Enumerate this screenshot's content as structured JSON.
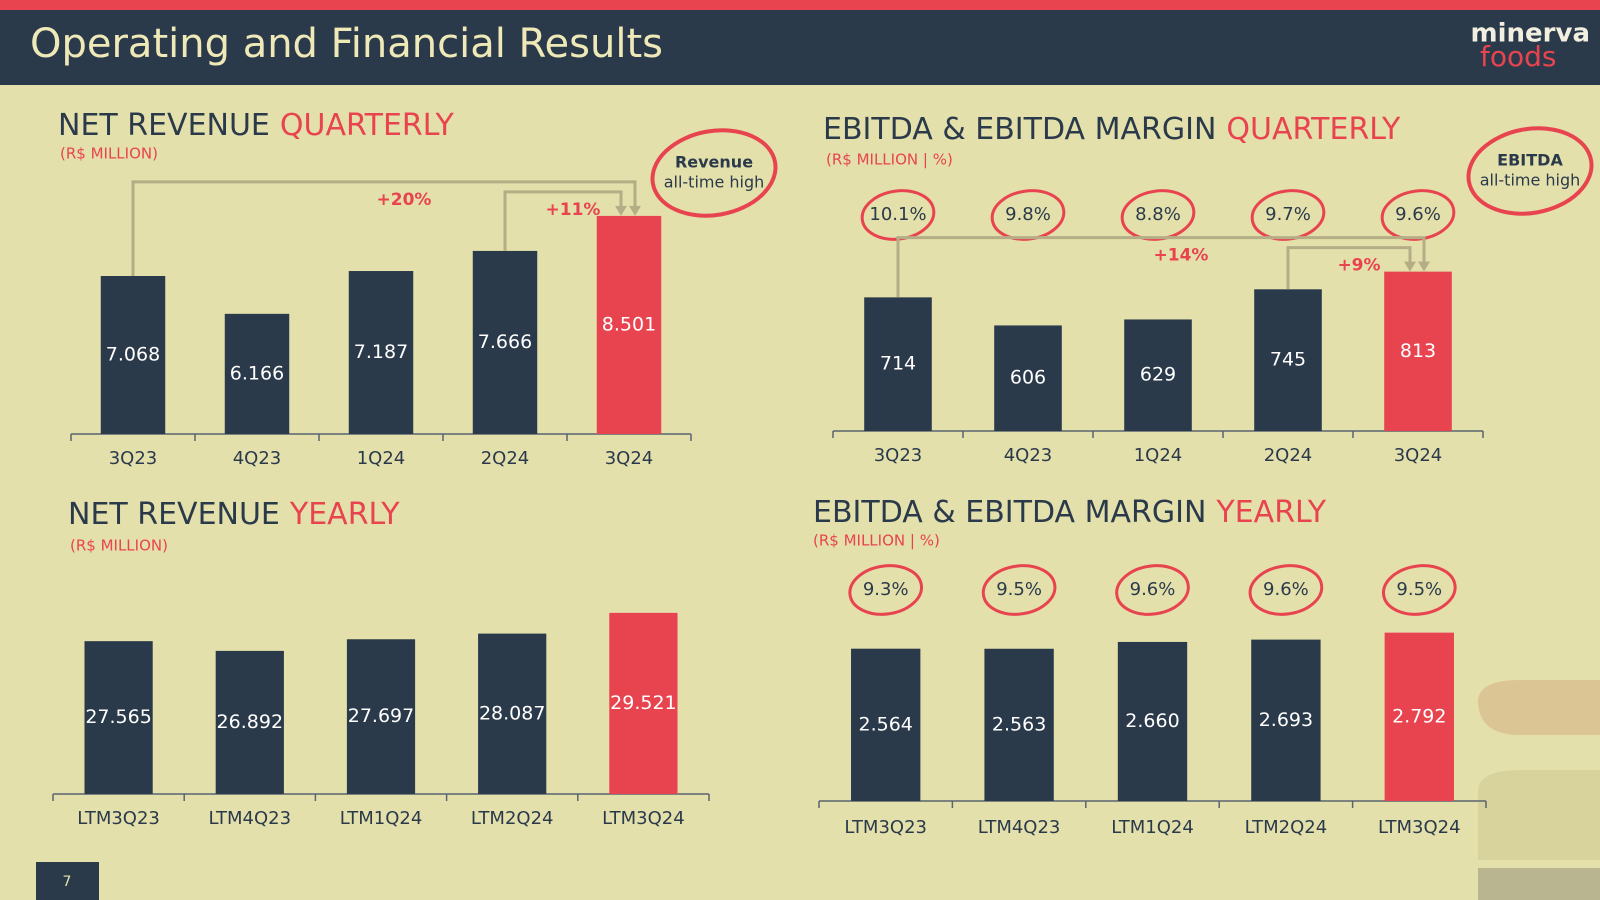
{
  "header": {
    "title": "Operating and Financial Results",
    "logo_top": "minerva",
    "logo_bottom": "foods"
  },
  "page_number": "7",
  "chart_data": [
    {
      "type": "bar",
      "title": "NET REVENUE",
      "title_highlight": "QUARTERLY",
      "subtitle": "(R$ MILLION)",
      "categories": [
        "3Q23",
        "4Q23",
        "1Q24",
        "2Q24",
        "3Q24"
      ],
      "values": [
        7068,
        6166,
        7187,
        7666,
        8501
      ],
      "value_labels": [
        "7.068",
        "6.166",
        "7.187",
        "7.666",
        "8.501"
      ],
      "colors": [
        "#2b3a4b",
        "#2b3a4b",
        "#2b3a4b",
        "#2b3a4b",
        "#e8444f"
      ],
      "ylim": [
        3300,
        9000
      ],
      "growth": [
        {
          "label": "+20%",
          "from": 0,
          "to": 4
        },
        {
          "label": "+11%",
          "from": 3,
          "to": 4
        }
      ],
      "callout": {
        "title": "Revenue",
        "text": "all-time high"
      }
    },
    {
      "type": "bar",
      "title": "EBITDA & EBITDA MARGIN",
      "title_highlight": "QUARTERLY",
      "subtitle": "(R$ MILLION | %)",
      "categories": [
        "3Q23",
        "4Q23",
        "1Q24",
        "2Q24",
        "3Q24"
      ],
      "values": [
        714,
        606,
        629,
        745,
        813
      ],
      "value_labels": [
        "714",
        "606",
        "629",
        "745",
        "813"
      ],
      "margins": [
        10.1,
        9.8,
        8.8,
        9.7,
        9.6
      ],
      "margin_labels": [
        "10.1%",
        "9.8%",
        "8.8%",
        "9.7%",
        "9.6%"
      ],
      "colors": [
        "#2b3a4b",
        "#2b3a4b",
        "#2b3a4b",
        "#2b3a4b",
        "#e8444f"
      ],
      "ylim": [
        200,
        1000
      ],
      "growth": [
        {
          "label": "+14%",
          "from": 0,
          "to": 4
        },
        {
          "label": "+9%",
          "from": 3,
          "to": 4
        }
      ],
      "callout": {
        "title": "EBITDA",
        "text": "all-time high"
      }
    },
    {
      "type": "bar",
      "title": "NET REVENUE",
      "title_highlight": "YEARLY",
      "subtitle": "(R$ MILLION)",
      "categories": [
        "LTM3Q23",
        "LTM4Q23",
        "LTM1Q24",
        "LTM2Q24",
        "LTM3Q24"
      ],
      "values": [
        27565,
        26892,
        27697,
        28087,
        29521
      ],
      "value_labels": [
        "27.565",
        "26.892",
        "27.697",
        "28.087",
        "29.521"
      ],
      "colors": [
        "#2b3a4b",
        "#2b3a4b",
        "#2b3a4b",
        "#2b3a4b",
        "#e8444f"
      ],
      "ylim": [
        17000,
        32000
      ]
    },
    {
      "type": "bar",
      "title": "EBITDA & EBITDA MARGIN",
      "title_highlight": "YEARLY",
      "subtitle": "(R$ MILLION | %)",
      "categories": [
        "LTM3Q23",
        "LTM4Q23",
        "LTM1Q24",
        "LTM2Q24",
        "LTM3Q24"
      ],
      "values": [
        2564,
        2563,
        2660,
        2693,
        2792
      ],
      "value_labels": [
        "2.564",
        "2.563",
        "2.660",
        "2.693",
        "2.792"
      ],
      "margins": [
        9.3,
        9.5,
        9.6,
        9.6,
        9.5
      ],
      "margin_labels": [
        "9.3%",
        "9.5%",
        "9.6%",
        "9.6%",
        "9.5%"
      ],
      "colors": [
        "#2b3a4b",
        "#2b3a4b",
        "#2b3a4b",
        "#2b3a4b",
        "#e8444f"
      ],
      "ylim": [
        400,
        3000
      ]
    }
  ]
}
